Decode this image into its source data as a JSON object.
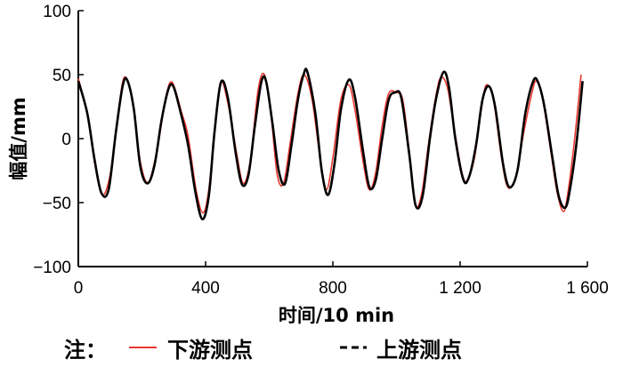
{
  "chart_data": {
    "type": "line",
    "xlabel": "时间/10 min",
    "ylabel": "幅值/mm",
    "xlim": [
      0,
      1600
    ],
    "ylim": [
      -100,
      100
    ],
    "x_ticks": [
      0,
      400,
      800,
      1200,
      1600
    ],
    "x_tick_labels": [
      "0",
      "400",
      "800",
      "1 200",
      "1 600"
    ],
    "y_ticks": [
      100,
      50,
      0,
      -50,
      -100
    ],
    "y_tick_labels": [
      "100",
      "50",
      "0",
      "−50",
      "−100"
    ],
    "grid": false,
    "legend": {
      "prefix": "注：",
      "position": "bottom"
    },
    "series": [
      {
        "name": "下游测点",
        "color": "#e8372e",
        "dash": "solid",
        "points": [
          [
            0,
            47
          ],
          [
            30,
            18
          ],
          [
            52,
            -20
          ],
          [
            75,
            -44
          ],
          [
            100,
            -28
          ],
          [
            125,
            20
          ],
          [
            145,
            48
          ],
          [
            170,
            30
          ],
          [
            195,
            -18
          ],
          [
            220,
            -34
          ],
          [
            248,
            -8
          ],
          [
            275,
            32
          ],
          [
            295,
            44
          ],
          [
            325,
            20
          ],
          [
            345,
            2
          ],
          [
            370,
            -40
          ],
          [
            392,
            -58
          ],
          [
            410,
            -40
          ],
          [
            430,
            8
          ],
          [
            448,
            44
          ],
          [
            470,
            28
          ],
          [
            498,
            -12
          ],
          [
            518,
            -35
          ],
          [
            540,
            -18
          ],
          [
            565,
            38
          ],
          [
            585,
            50
          ],
          [
            605,
            20
          ],
          [
            625,
            -28
          ],
          [
            645,
            -35
          ],
          [
            665,
            -5
          ],
          [
            690,
            35
          ],
          [
            710,
            50
          ],
          [
            735,
            30
          ],
          [
            760,
            -15
          ],
          [
            780,
            -40
          ],
          [
            800,
            -15
          ],
          [
            825,
            30
          ],
          [
            850,
            42
          ],
          [
            870,
            22
          ],
          [
            895,
            -18
          ],
          [
            915,
            -40
          ],
          [
            935,
            -26
          ],
          [
            955,
            10
          ],
          [
            975,
            35
          ],
          [
            1000,
            36
          ],
          [
            1020,
            30
          ],
          [
            1040,
            -10
          ],
          [
            1060,
            -52
          ],
          [
            1080,
            -42
          ],
          [
            1100,
            -5
          ],
          [
            1125,
            35
          ],
          [
            1140,
            48
          ],
          [
            1160,
            40
          ],
          [
            1180,
            10
          ],
          [
            1205,
            -26
          ],
          [
            1222,
            -33
          ],
          [
            1245,
            -15
          ],
          [
            1268,
            25
          ],
          [
            1283,
            42
          ],
          [
            1305,
            30
          ],
          [
            1330,
            -15
          ],
          [
            1350,
            -38
          ],
          [
            1375,
            -30
          ],
          [
            1400,
            5
          ],
          [
            1425,
            35
          ],
          [
            1440,
            45
          ],
          [
            1460,
            30
          ],
          [
            1485,
            -10
          ],
          [
            1505,
            -42
          ],
          [
            1525,
            -57
          ],
          [
            1540,
            -40
          ],
          [
            1560,
            0
          ],
          [
            1580,
            50
          ]
        ]
      },
      {
        "name": "上游测点",
        "color": "#000000",
        "dash": "solid",
        "points": [
          [
            0,
            45
          ],
          [
            28,
            20
          ],
          [
            50,
            -15
          ],
          [
            72,
            -42
          ],
          [
            95,
            -40
          ],
          [
            118,
            5
          ],
          [
            140,
            42
          ],
          [
            155,
            45
          ],
          [
            175,
            22
          ],
          [
            195,
            -22
          ],
          [
            218,
            -35
          ],
          [
            240,
            -20
          ],
          [
            262,
            15
          ],
          [
            285,
            40
          ],
          [
            300,
            40
          ],
          [
            320,
            22
          ],
          [
            345,
            -5
          ],
          [
            368,
            -42
          ],
          [
            390,
            -63
          ],
          [
            410,
            -45
          ],
          [
            428,
            5
          ],
          [
            448,
            44
          ],
          [
            470,
            32
          ],
          [
            495,
            -12
          ],
          [
            515,
            -36
          ],
          [
            535,
            -28
          ],
          [
            555,
            10
          ],
          [
            575,
            44
          ],
          [
            590,
            45
          ],
          [
            610,
            12
          ],
          [
            630,
            -25
          ],
          [
            650,
            -35
          ],
          [
            670,
            -5
          ],
          [
            690,
            30
          ],
          [
            708,
            50
          ],
          [
            720,
            52
          ],
          [
            745,
            20
          ],
          [
            765,
            -25
          ],
          [
            785,
            -44
          ],
          [
            805,
            -20
          ],
          [
            825,
            22
          ],
          [
            850,
            46
          ],
          [
            870,
            32
          ],
          [
            895,
            -10
          ],
          [
            915,
            -38
          ],
          [
            935,
            -32
          ],
          [
            955,
            0
          ],
          [
            975,
            30
          ],
          [
            995,
            36
          ],
          [
            1015,
            32
          ],
          [
            1040,
            -12
          ],
          [
            1060,
            -52
          ],
          [
            1082,
            -45
          ],
          [
            1105,
            0
          ],
          [
            1125,
            32
          ],
          [
            1148,
            52
          ],
          [
            1165,
            40
          ],
          [
            1185,
            0
          ],
          [
            1210,
            -32
          ],
          [
            1228,
            -30
          ],
          [
            1250,
            -5
          ],
          [
            1270,
            30
          ],
          [
            1290,
            41
          ],
          [
            1310,
            25
          ],
          [
            1335,
            -20
          ],
          [
            1355,
            -38
          ],
          [
            1380,
            -25
          ],
          [
            1405,
            20
          ],
          [
            1430,
            45
          ],
          [
            1445,
            44
          ],
          [
            1465,
            25
          ],
          [
            1490,
            -15
          ],
          [
            1510,
            -45
          ],
          [
            1530,
            -54
          ],
          [
            1545,
            -40
          ],
          [
            1565,
            -5
          ],
          [
            1585,
            45
          ]
        ]
      }
    ]
  }
}
